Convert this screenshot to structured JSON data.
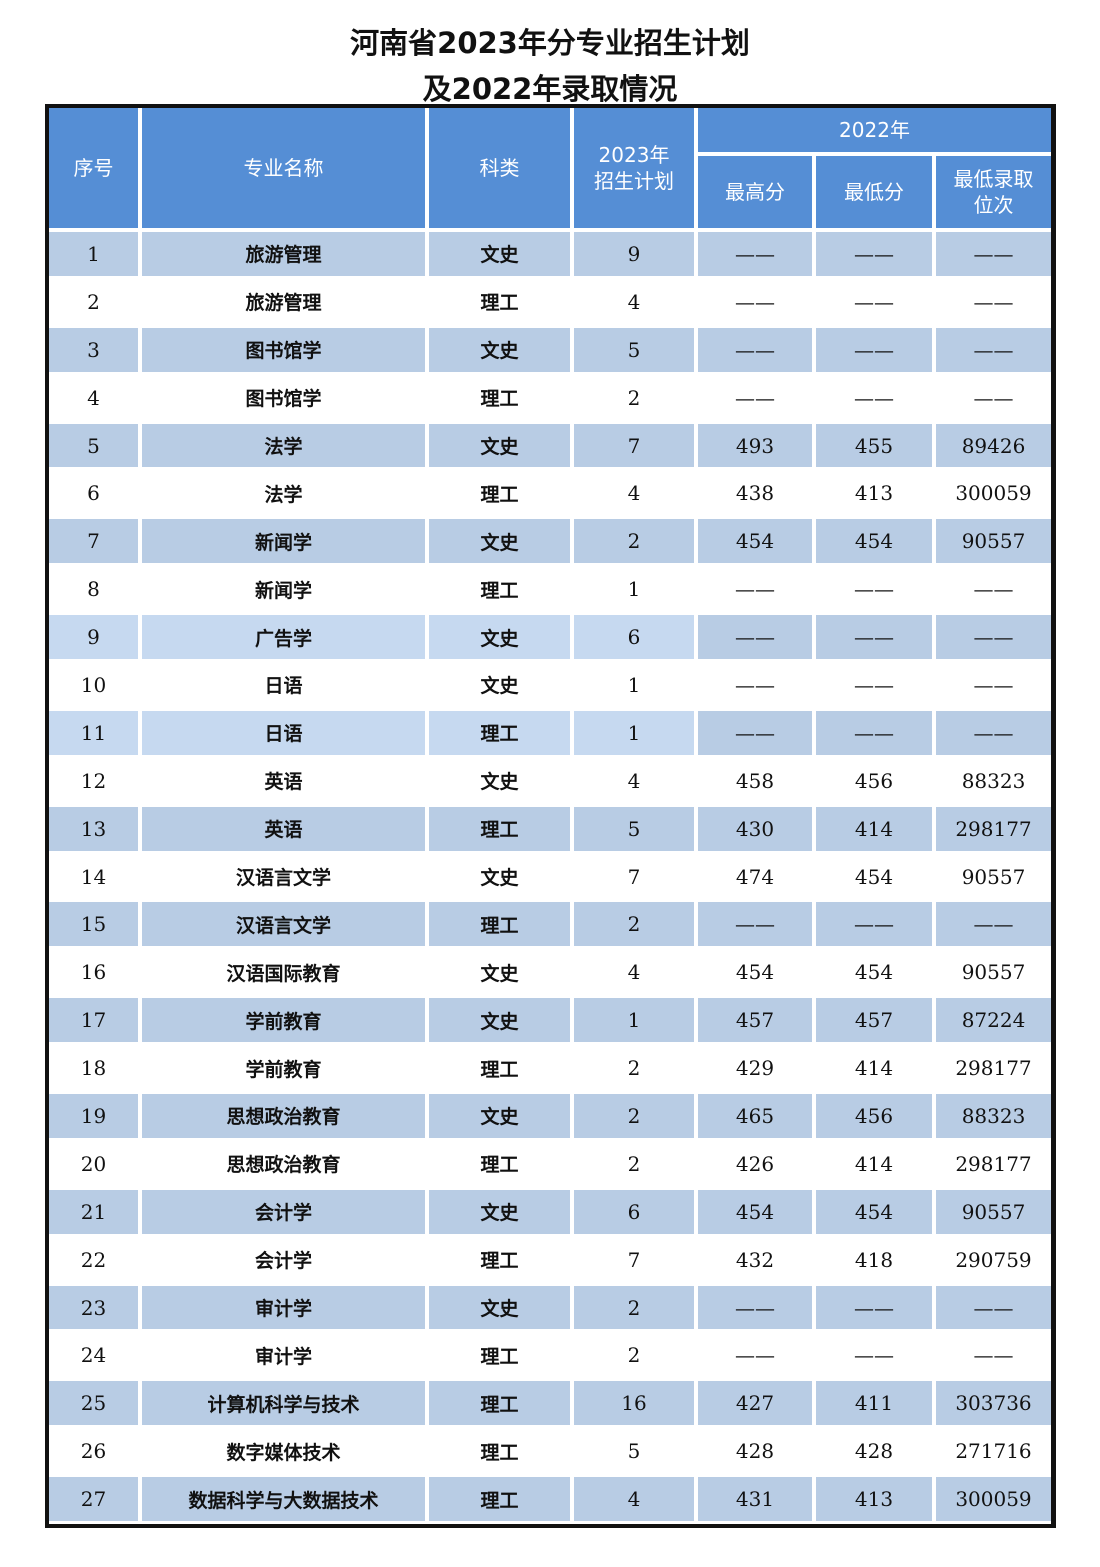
{
  "title": {
    "line1": "河南省2023年分专业招生计划",
    "line2": "及2022年录取情况"
  },
  "colors": {
    "header": "#558ed5",
    "band": "#b8cce4"
  },
  "headers": {
    "index": "序号",
    "major": "专业名称",
    "category": "科类",
    "plan": "2023年\n招生计划",
    "group_2022": "2022年",
    "max": "最高分",
    "min": "最低分",
    "rank": "最低录取\n位次"
  },
  "rows": [
    {
      "n": "1",
      "major": "旅游管理",
      "cat": "文史",
      "plan": "9",
      "max": "——",
      "min": "——",
      "rank": "——"
    },
    {
      "n": "2",
      "major": "旅游管理",
      "cat": "理工",
      "plan": "4",
      "max": "——",
      "min": "——",
      "rank": "——"
    },
    {
      "n": "3",
      "major": "图书馆学",
      "cat": "文史",
      "plan": "5",
      "max": "——",
      "min": "——",
      "rank": "——"
    },
    {
      "n": "4",
      "major": "图书馆学",
      "cat": "理工",
      "plan": "2",
      "max": "——",
      "min": "——",
      "rank": "——"
    },
    {
      "n": "5",
      "major": "法学",
      "cat": "文史",
      "plan": "7",
      "max": "493",
      "min": "455",
      "rank": "89426"
    },
    {
      "n": "6",
      "major": "法学",
      "cat": "理工",
      "plan": "4",
      "max": "438",
      "min": "413",
      "rank": "300059"
    },
    {
      "n": "7",
      "major": "新闻学",
      "cat": "文史",
      "plan": "2",
      "max": "454",
      "min": "454",
      "rank": "90557"
    },
    {
      "n": "8",
      "major": "新闻学",
      "cat": "理工",
      "plan": "1",
      "max": "——",
      "min": "——",
      "rank": "——"
    },
    {
      "n": "9",
      "major": "广告学",
      "cat": "文史",
      "plan": "6",
      "max": "——",
      "min": "——",
      "rank": "——"
    },
    {
      "n": "10",
      "major": "日语",
      "cat": "文史",
      "plan": "1",
      "max": "——",
      "min": "——",
      "rank": "——"
    },
    {
      "n": "11",
      "major": "日语",
      "cat": "理工",
      "plan": "1",
      "max": "——",
      "min": "——",
      "rank": "——"
    },
    {
      "n": "12",
      "major": "英语",
      "cat": "文史",
      "plan": "4",
      "max": "458",
      "min": "456",
      "rank": "88323"
    },
    {
      "n": "13",
      "major": "英语",
      "cat": "理工",
      "plan": "5",
      "max": "430",
      "min": "414",
      "rank": "298177"
    },
    {
      "n": "14",
      "major": "汉语言文学",
      "cat": "文史",
      "plan": "7",
      "max": "474",
      "min": "454",
      "rank": "90557"
    },
    {
      "n": "15",
      "major": "汉语言文学",
      "cat": "理工",
      "plan": "2",
      "max": "——",
      "min": "——",
      "rank": "——"
    },
    {
      "n": "16",
      "major": "汉语国际教育",
      "cat": "文史",
      "plan": "4",
      "max": "454",
      "min": "454",
      "rank": "90557"
    },
    {
      "n": "17",
      "major": "学前教育",
      "cat": "文史",
      "plan": "1",
      "max": "457",
      "min": "457",
      "rank": "87224"
    },
    {
      "n": "18",
      "major": "学前教育",
      "cat": "理工",
      "plan": "2",
      "max": "429",
      "min": "414",
      "rank": "298177"
    },
    {
      "n": "19",
      "major": "思想政治教育",
      "cat": "文史",
      "plan": "2",
      "max": "465",
      "min": "456",
      "rank": "88323"
    },
    {
      "n": "20",
      "major": "思想政治教育",
      "cat": "理工",
      "plan": "2",
      "max": "426",
      "min": "414",
      "rank": "298177"
    },
    {
      "n": "21",
      "major": "会计学",
      "cat": "文史",
      "plan": "6",
      "max": "454",
      "min": "454",
      "rank": "90557"
    },
    {
      "n": "22",
      "major": "会计学",
      "cat": "理工",
      "plan": "7",
      "max": "432",
      "min": "418",
      "rank": "290759"
    },
    {
      "n": "23",
      "major": "审计学",
      "cat": "文史",
      "plan": "2",
      "max": "——",
      "min": "——",
      "rank": "——"
    },
    {
      "n": "24",
      "major": "审计学",
      "cat": "理工",
      "plan": "2",
      "max": "——",
      "min": "——",
      "rank": "——"
    },
    {
      "n": "25",
      "major": "计算机科学与技术",
      "cat": "理工",
      "plan": "16",
      "max": "427",
      "min": "411",
      "rank": "303736"
    },
    {
      "n": "26",
      "major": "数字媒体技术",
      "cat": "理工",
      "plan": "5",
      "max": "428",
      "min": "428",
      "rank": "271716"
    },
    {
      "n": "27",
      "major": "数据科学与大数据技术",
      "cat": "理工",
      "plan": "4",
      "max": "431",
      "min": "413",
      "rank": "300059"
    }
  ]
}
